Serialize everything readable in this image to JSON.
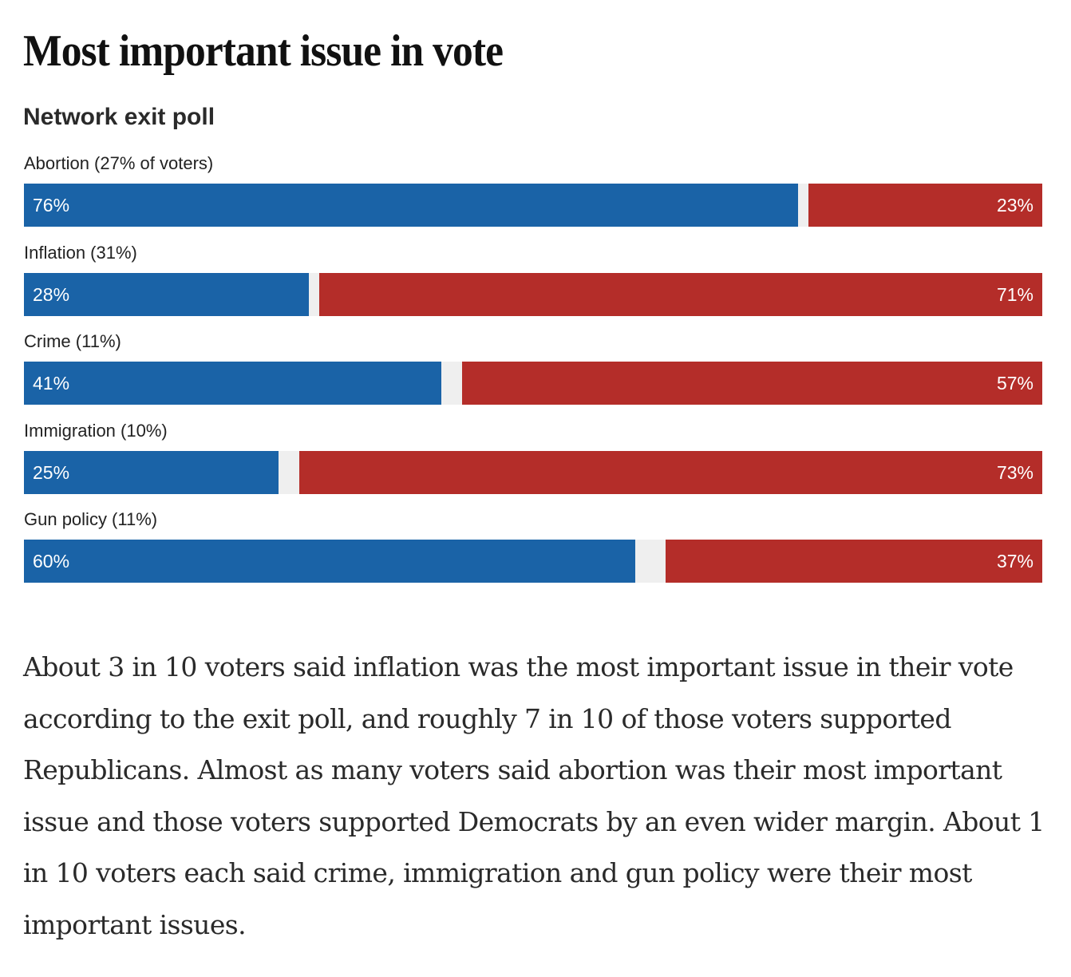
{
  "header": {
    "title": "Most important issue in vote",
    "subtitle": "Network exit poll"
  },
  "colors": {
    "democrat": "#1a63a7",
    "republican": "#b42d29",
    "other": "#efefef"
  },
  "chart_data": {
    "type": "bar",
    "orientation": "horizontal",
    "stacked": true,
    "title": "Most important issue in vote",
    "subtitle": "Network exit poll",
    "categories": [
      "Abortion (27% of voters)",
      "Inflation (31%)",
      "Crime (11%)",
      "Immigration (10%)",
      "Gun policy (11%)"
    ],
    "issue_share_of_voters": [
      27,
      31,
      11,
      10,
      11
    ],
    "series": [
      {
        "name": "Democrats",
        "color": "#1a63a7",
        "values": [
          76,
          28,
          41,
          25,
          60
        ],
        "labels": [
          "76%",
          "28%",
          "41%",
          "25%",
          "60%"
        ]
      },
      {
        "name": "Republicans",
        "color": "#b42d29",
        "values": [
          23,
          71,
          57,
          73,
          37
        ],
        "labels": [
          "23%",
          "71%",
          "57%",
          "73%",
          "37%"
        ]
      }
    ],
    "xlim": [
      0,
      100
    ],
    "xlabel": "",
    "ylabel": "",
    "grid": false,
    "legend": "none"
  },
  "body": {
    "paragraph": "About 3 in 10 voters said inflation was the most important issue in their vote according to the exit poll, and roughly 7 in 10 of those voters supported Republicans. Almost as many voters said abortion was their most important issue and those voters supported Democrats by an even wider margin. About 1 in 10 voters each said crime, immigration and gun policy were their most important issues."
  }
}
